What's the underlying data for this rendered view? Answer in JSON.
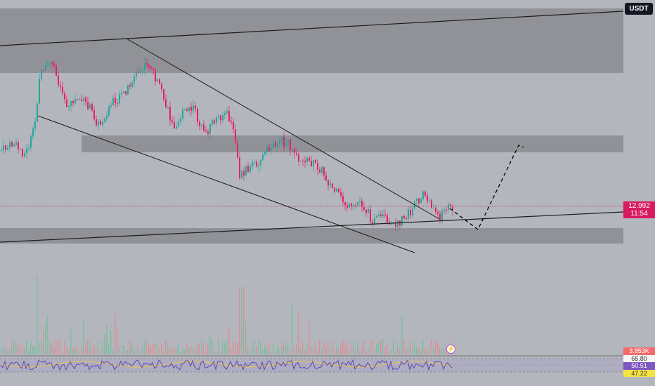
{
  "header": {
    "currency_label": "USDT"
  },
  "price_scale": {
    "current_price": "12.992",
    "countdown": "11:54",
    "volume_value": "3.853K",
    "rsi_upper_band": "65.80",
    "rsi_value": "50.51",
    "rsi_lower_band": "47.22"
  },
  "icons": {
    "flash": "lightning-icon"
  },
  "colors": {
    "background": "#b3b6bd",
    "zone": "#8a8c92",
    "bull_candle": "#26a69a",
    "bear_candle": "#e91e63",
    "price_tag": "#d81b60",
    "rsi_line": "#7e57c2",
    "rsi_ma": "#f5c542"
  }
}
